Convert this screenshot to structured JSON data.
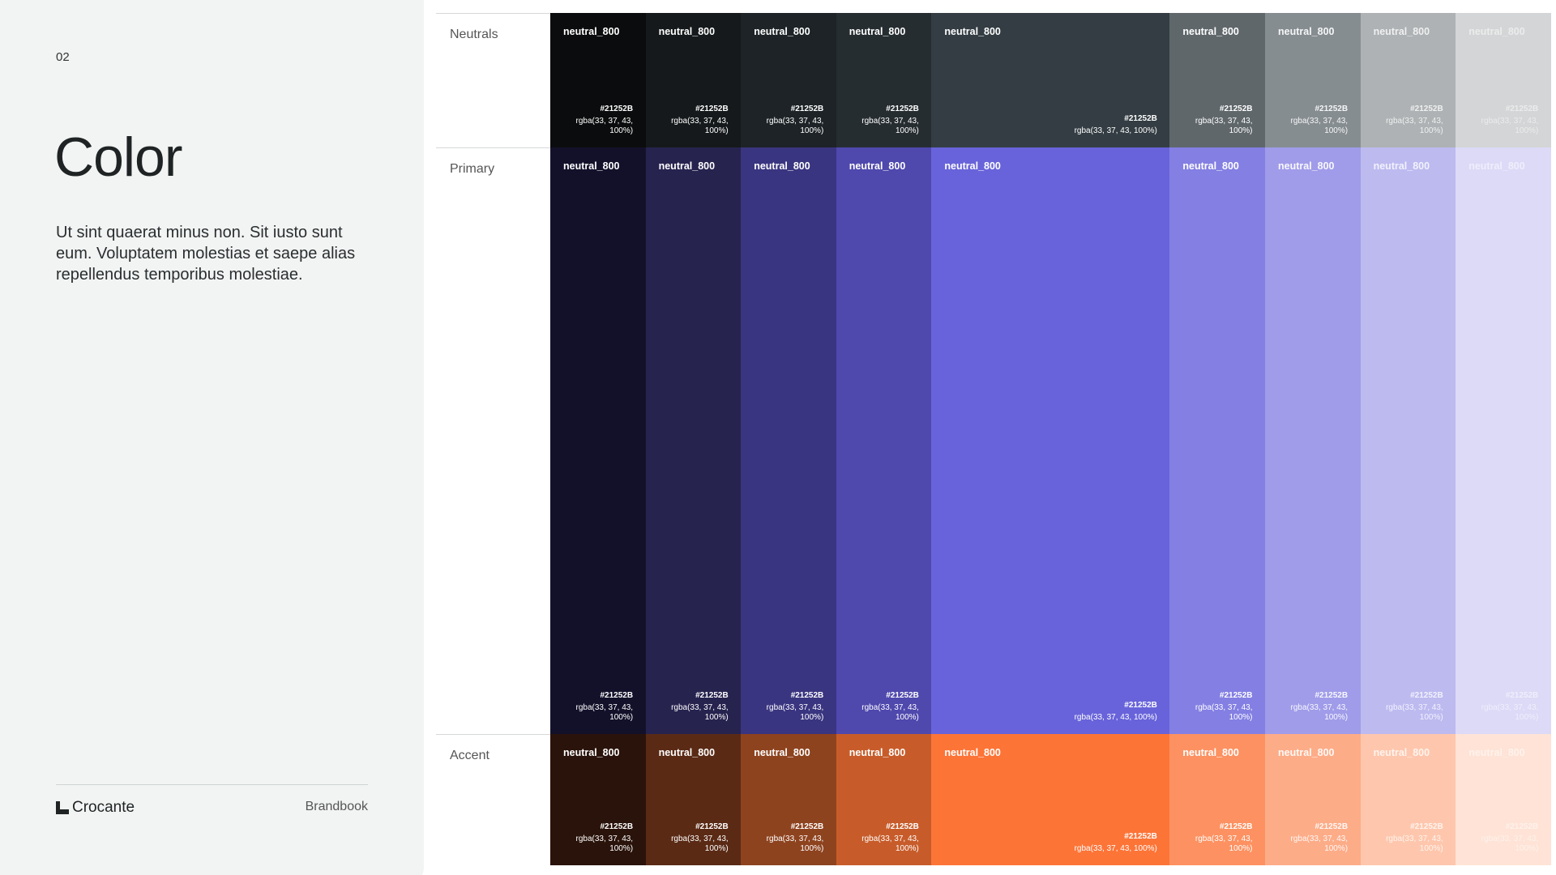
{
  "page_number": "02",
  "title": "Color",
  "description": "Ut sint quaerat minus non. Sit iusto sunt eum. Voluptatem molestias et saepe alias repellendus temporibus molestiae.",
  "footer": {
    "logo": "Crocante",
    "label": "Brandbook"
  },
  "palette": [
    {
      "label": "Neutrals",
      "swatches": [
        {
          "name": "neutral_800",
          "hex": "#21252B",
          "rgba": "rgba(33, 37, 43, 100%)",
          "color": "#0b0c0d"
        },
        {
          "name": "neutral_800",
          "hex": "#21252B",
          "rgba": "rgba(33, 37, 43, 100%)",
          "color": "#15191b"
        },
        {
          "name": "neutral_800",
          "hex": "#21252B",
          "rgba": "rgba(33, 37, 43, 100%)",
          "color": "#1d2326"
        },
        {
          "name": "neutral_800",
          "hex": "#21252B",
          "rgba": "rgba(33, 37, 43, 100%)",
          "color": "#262d31"
        },
        {
          "name": "neutral_800",
          "hex": "#21252B",
          "rgba": "rgba(33, 37, 43, 100%)",
          "color": "#333d43"
        },
        {
          "name": "neutral_800",
          "hex": "#21252B",
          "rgba": "rgba(33, 37, 43, 100%)",
          "color": "#5f676b"
        },
        {
          "name": "neutral_800",
          "hex": "#21252B",
          "rgba": "rgba(33, 37, 43, 100%)",
          "color": "#868d91"
        },
        {
          "name": "neutral_800",
          "hex": "#21252B",
          "rgba": "rgba(33, 37, 43, 100%)",
          "color": "#aeb2b4"
        },
        {
          "name": "neutral_800",
          "hex": "#21252B",
          "rgba": "rgba(33, 37, 43, 100%)",
          "color": "#d3d5d6"
        }
      ]
    },
    {
      "label": "Primary",
      "swatches": [
        {
          "name": "neutral_800",
          "hex": "#21252B",
          "rgba": "rgba(33, 37, 43, 100%)",
          "color": "#13112a"
        },
        {
          "name": "neutral_800",
          "hex": "#21252B",
          "rgba": "rgba(33, 37, 43, 100%)",
          "color": "#27234f"
        },
        {
          "name": "neutral_800",
          "hex": "#21252B",
          "rgba": "rgba(33, 37, 43, 100%)",
          "color": "#3a3580"
        },
        {
          "name": "neutral_800",
          "hex": "#21252B",
          "rgba": "rgba(33, 37, 43, 100%)",
          "color": "#4f48ad"
        },
        {
          "name": "neutral_800",
          "hex": "#21252B",
          "rgba": "rgba(33, 37, 43, 100%)",
          "color": "#6863da"
        },
        {
          "name": "neutral_800",
          "hex": "#21252B",
          "rgba": "rgba(33, 37, 43, 100%)",
          "color": "#837fe3"
        },
        {
          "name": "neutral_800",
          "hex": "#21252B",
          "rgba": "rgba(33, 37, 43, 100%)",
          "color": "#a09ce9"
        },
        {
          "name": "neutral_800",
          "hex": "#21252B",
          "rgba": "rgba(33, 37, 43, 100%)",
          "color": "#bdbaf0"
        },
        {
          "name": "neutral_800",
          "hex": "#21252B",
          "rgba": "rgba(33, 37, 43, 100%)",
          "color": "#dcdaf7"
        }
      ]
    },
    {
      "label": "Accent",
      "swatches": [
        {
          "name": "neutral_800",
          "hex": "#21252B",
          "rgba": "rgba(33, 37, 43, 100%)",
          "color": "#2a130b"
        },
        {
          "name": "neutral_800",
          "hex": "#21252B",
          "rgba": "rgba(33, 37, 43, 100%)",
          "color": "#5a2a15"
        },
        {
          "name": "neutral_800",
          "hex": "#21252B",
          "rgba": "rgba(33, 37, 43, 100%)",
          "color": "#8e431f"
        },
        {
          "name": "neutral_800",
          "hex": "#21252B",
          "rgba": "rgba(33, 37, 43, 100%)",
          "color": "#c75c2a"
        },
        {
          "name": "neutral_800",
          "hex": "#21252B",
          "rgba": "rgba(33, 37, 43, 100%)",
          "color": "#fd7437"
        },
        {
          "name": "neutral_800",
          "hex": "#21252B",
          "rgba": "rgba(33, 37, 43, 100%)",
          "color": "#fd9161"
        },
        {
          "name": "neutral_800",
          "hex": "#21252B",
          "rgba": "rgba(33, 37, 43, 100%)",
          "color": "#fdac88"
        },
        {
          "name": "neutral_800",
          "hex": "#21252B",
          "rgba": "rgba(33, 37, 43, 100%)",
          "color": "#fec7ad"
        },
        {
          "name": "neutral_800",
          "hex": "#21252B",
          "rgba": "rgba(33, 37, 43, 100%)",
          "color": "#fee3d6"
        }
      ]
    }
  ]
}
